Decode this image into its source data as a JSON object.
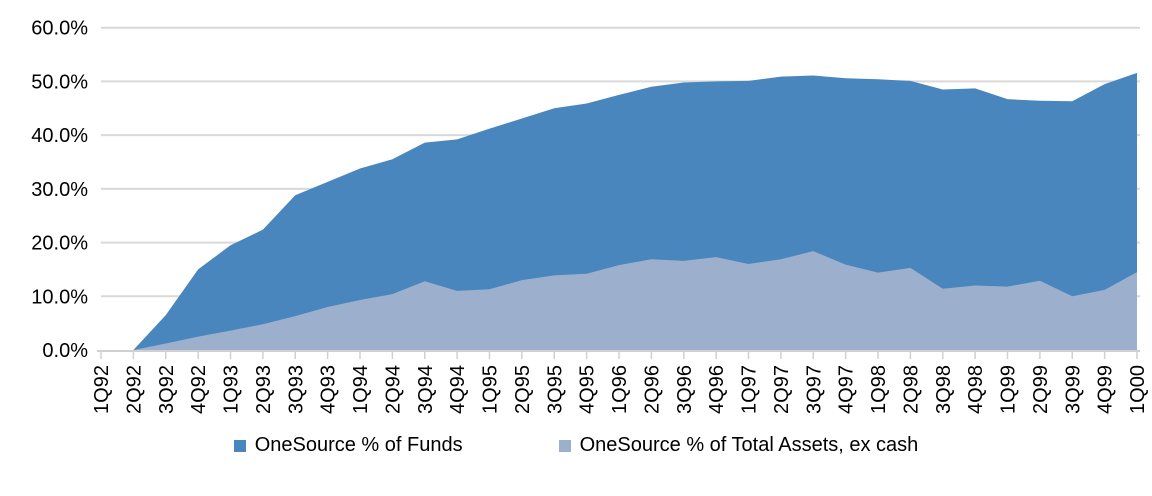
{
  "chart_data": {
    "type": "area",
    "title": "",
    "xlabel": "",
    "ylabel": "",
    "categories": [
      "1Q92",
      "2Q92",
      "3Q92",
      "4Q92",
      "1Q93",
      "2Q93",
      "3Q93",
      "4Q93",
      "1Q94",
      "2Q94",
      "3Q94",
      "4Q94",
      "1Q95",
      "2Q95",
      "3Q95",
      "4Q95",
      "1Q96",
      "2Q96",
      "3Q96",
      "4Q96",
      "1Q97",
      "2Q97",
      "3Q97",
      "4Q97",
      "1Q98",
      "2Q98",
      "3Q98",
      "4Q98",
      "1Q99",
      "2Q99",
      "3Q99",
      "4Q99",
      "1Q00"
    ],
    "series": [
      {
        "name": "OneSource % of Funds",
        "color": "#4a86be",
        "values": [
          0,
          0,
          6.5,
          15.0,
          19.5,
          22.4,
          28.8,
          31.3,
          33.8,
          35.5,
          38.6,
          39.2,
          41.2,
          43.1,
          45.0,
          45.9,
          47.5,
          49.0,
          49.8,
          50.0,
          50.1,
          50.9,
          51.1,
          50.6,
          50.4,
          50.1,
          48.5,
          48.7,
          46.7,
          46.4,
          46.3,
          49.5,
          51.6
        ]
      },
      {
        "name": "OneSource % of Total Assets, ex cash",
        "color": "#9cb0cd",
        "values": [
          0,
          0,
          1.2,
          2.5,
          3.6,
          4.8,
          6.3,
          8.0,
          9.3,
          10.4,
          12.8,
          11.0,
          11.3,
          13.0,
          13.9,
          14.2,
          15.8,
          16.9,
          16.6,
          17.3,
          16.0,
          16.9,
          18.4,
          15.9,
          14.4,
          15.3,
          11.4,
          12.0,
          11.8,
          12.9,
          10.0,
          11.2,
          14.5
        ]
      }
    ],
    "y_axis": {
      "min": 0,
      "max": 60,
      "step": 10,
      "tick_labels": [
        "0.0%",
        "10.0%",
        "20.0%",
        "30.0%",
        "40.0%",
        "50.0%",
        "60.0%"
      ],
      "grid": true,
      "grid_color": "#d9d9d9",
      "label_color": "#000000"
    },
    "x_axis": {
      "label_rotation": -90,
      "axis_color": "#d0d0d0",
      "label_color": "#000000"
    },
    "legend_position": "bottom"
  }
}
